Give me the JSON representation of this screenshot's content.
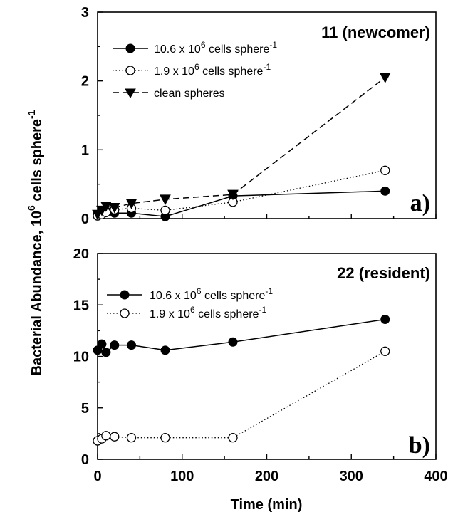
{
  "chart_data": [
    {
      "type": "line",
      "panel_label": "a)",
      "title": "11 (newcomer)",
      "xlabel": "Time (min)",
      "ylabel": "Bacterial Abundance,  10^6 cells sphere^-1",
      "xlim": [
        0,
        400
      ],
      "ylim": [
        0,
        3
      ],
      "yticks": [
        "0",
        "1",
        "2",
        "3"
      ],
      "legend_position": "upper-left",
      "series": [
        {
          "name": "10.6 x 10^6 cells sphere^-1",
          "marker": "filled-circle",
          "line": "solid",
          "x": [
            0,
            5,
            10,
            20,
            40,
            80,
            160,
            340
          ],
          "y": [
            0.06,
            0.09,
            0.11,
            0.08,
            0.08,
            0.03,
            0.33,
            0.4
          ]
        },
        {
          "name": "1.9 x 10^6 cells sphere^-1",
          "marker": "open-circle",
          "line": "dotted",
          "x": [
            0,
            5,
            10,
            20,
            40,
            80,
            160,
            340
          ],
          "y": [
            0.04,
            0.06,
            0.09,
            0.13,
            0.15,
            0.12,
            0.24,
            0.7
          ]
        },
        {
          "name": "clean spheres",
          "marker": "filled-triangle-down",
          "line": "dashed",
          "x": [
            0,
            5,
            10,
            20,
            40,
            80,
            160,
            340
          ],
          "y": [
            0.06,
            0.12,
            0.18,
            0.16,
            0.22,
            0.28,
            0.35,
            2.05
          ]
        }
      ]
    },
    {
      "type": "line",
      "panel_label": "b)",
      "title": "22 (resident)",
      "xlabel": "Time (min)",
      "ylabel": "Bacterial Abundance,  10^6 cells sphere^-1",
      "xlim": [
        0,
        400
      ],
      "ylim": [
        0,
        20
      ],
      "xticks": [
        "0",
        "100",
        "200",
        "300",
        "400"
      ],
      "yticks": [
        "0",
        "5",
        "10",
        "15",
        "20"
      ],
      "legend_position": "upper-left",
      "series": [
        {
          "name": "10.6 x 10^6 cells sphere^-1",
          "marker": "filled-circle",
          "line": "solid",
          "x": [
            0,
            5,
            10,
            20,
            40,
            80,
            160,
            340
          ],
          "y": [
            10.6,
            11.2,
            10.4,
            11.1,
            11.1,
            10.6,
            11.4,
            13.6
          ]
        },
        {
          "name": "1.9 x 10^6 cells sphere^-1",
          "marker": "open-circle",
          "line": "dotted",
          "x": [
            0,
            5,
            10,
            20,
            40,
            80,
            160,
            340
          ],
          "y": [
            1.8,
            2.0,
            2.3,
            2.2,
            2.1,
            2.1,
            2.1,
            10.5
          ]
        }
      ]
    }
  ],
  "legend_labels": {
    "dense_base": "10.6 x 10",
    "dense_exp": "6",
    "sparse_base": "1.9 x 10",
    "sparse_exp": "6",
    "mid": " cells sphere",
    "neg": "-1",
    "clean": "clean spheres"
  },
  "axis_text": {
    "ylabel_main": "Bacterial Abundance,  10",
    "ylabel_exp": "6",
    "ylabel_unit": " cells sphere",
    "ylabel_neg": "-1"
  }
}
